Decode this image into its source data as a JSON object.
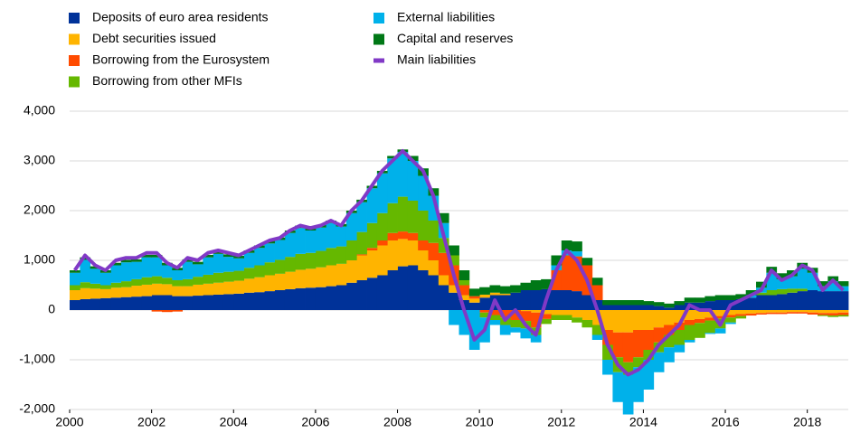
{
  "chart_data": {
    "type": "bar",
    "stacked": true,
    "grid": true,
    "legend": "top-left",
    "xlim": [
      2000,
      2019
    ],
    "xticks": [
      2000,
      2002,
      2004,
      2006,
      2008,
      2010,
      2012,
      2014,
      2016,
      2018
    ],
    "ylim": [
      -2000,
      4000
    ],
    "yticks": [
      {
        "value": -2000,
        "label": "-2,000"
      },
      {
        "value": -1000,
        "label": "-1,000"
      },
      0,
      {
        "value": 1000,
        "label": "1,000"
      },
      {
        "value": 2000,
        "label": "2,000"
      },
      {
        "value": 3000,
        "label": "3,000"
      },
      {
        "value": 4000,
        "label": "4,000"
      }
    ],
    "x": [
      2000,
      2000.25,
      2000.5,
      2000.75,
      2001,
      2001.25,
      2001.5,
      2001.75,
      2002,
      2002.25,
      2002.5,
      2002.75,
      2003,
      2003.25,
      2003.5,
      2003.75,
      2004,
      2004.25,
      2004.5,
      2004.75,
      2005,
      2005.25,
      2005.5,
      2005.75,
      2006,
      2006.25,
      2006.5,
      2006.75,
      2007,
      2007.25,
      2007.5,
      2007.75,
      2008,
      2008.25,
      2008.5,
      2008.75,
      2009,
      2009.25,
      2009.5,
      2009.75,
      2010,
      2010.25,
      2010.5,
      2010.75,
      2011,
      2011.25,
      2011.5,
      2011.75,
      2012,
      2012.25,
      2012.5,
      2012.75,
      2013,
      2013.25,
      2013.5,
      2013.75,
      2014,
      2014.25,
      2014.5,
      2014.75,
      2015,
      2015.25,
      2015.5,
      2015.75,
      2016,
      2016.25,
      2016.5,
      2016.75,
      2017,
      2017.25,
      2017.5,
      2017.75,
      2018,
      2018.25,
      2018.5,
      2018.75
    ],
    "series": [
      {
        "name": "Deposits of euro area residents",
        "color": "#003299",
        "type": "bar",
        "values": [
          200,
          220,
          230,
          240,
          250,
          260,
          270,
          280,
          300,
          300,
          280,
          280,
          290,
          300,
          310,
          320,
          330,
          350,
          360,
          380,
          400,
          420,
          440,
          450,
          460,
          480,
          500,
          550,
          600,
          650,
          700,
          800,
          880,
          900,
          800,
          700,
          500,
          350,
          200,
          150,
          250,
          300,
          300,
          350,
          400,
          400,
          420,
          400,
          400,
          380,
          300,
          200,
          100,
          100,
          100,
          100,
          100,
          80,
          50,
          100,
          150,
          150,
          180,
          200,
          200,
          220,
          250,
          300,
          300,
          320,
          350,
          380,
          400,
          380,
          380,
          380
        ]
      },
      {
        "name": "Debt securities issued",
        "color": "#ffb400",
        "type": "bar",
        "values": [
          200,
          220,
          200,
          180,
          200,
          200,
          220,
          230,
          230,
          220,
          200,
          200,
          220,
          230,
          240,
          250,
          260,
          280,
          300,
          320,
          330,
          350,
          370,
          380,
          400,
          420,
          430,
          450,
          500,
          550,
          600,
          600,
          550,
          500,
          400,
          300,
          200,
          150,
          100,
          80,
          60,
          50,
          30,
          0,
          -20,
          -50,
          -80,
          -100,
          -100,
          -150,
          -200,
          -300,
          -400,
          -450,
          -450,
          -400,
          -400,
          -350,
          -300,
          -250,
          -200,
          -180,
          -150,
          -120,
          -100,
          -80,
          -70,
          -60,
          -50,
          -50,
          -40,
          -40,
          -50,
          -60,
          -60,
          -50
        ]
      },
      {
        "name": "Borrowing from the Eurosystem",
        "color": "#ff4b00",
        "type": "bar",
        "values": [
          0,
          0,
          0,
          0,
          0,
          0,
          0,
          0,
          -30,
          -40,
          -30,
          0,
          0,
          0,
          0,
          0,
          0,
          0,
          0,
          0,
          0,
          0,
          0,
          0,
          0,
          0,
          0,
          0,
          20,
          50,
          100,
          150,
          150,
          150,
          200,
          350,
          450,
          400,
          200,
          50,
          -50,
          -100,
          -150,
          -200,
          -200,
          -300,
          -100,
          400,
          700,
          700,
          600,
          300,
          -300,
          -500,
          -600,
          -550,
          -400,
          -300,
          -200,
          -150,
          -100,
          -80,
          -60,
          -50,
          -50,
          -40,
          -40,
          -30,
          -30,
          -30,
          -30,
          -30,
          -40,
          -40,
          -50,
          -50
        ]
      },
      {
        "name": "Borrowing from other MFIs",
        "color": "#65b800",
        "type": "bar",
        "values": [
          100,
          120,
          100,
          80,
          100,
          120,
          130,
          150,
          150,
          130,
          120,
          140,
          160,
          180,
          200,
          200,
          200,
          220,
          240,
          260,
          280,
          300,
          320,
          320,
          330,
          350,
          350,
          400,
          450,
          500,
          550,
          600,
          700,
          650,
          600,
          450,
          300,
          200,
          100,
          0,
          -100,
          -100,
          -150,
          -150,
          -150,
          -150,
          -100,
          -100,
          -100,
          -100,
          -150,
          -200,
          -300,
          -300,
          -250,
          -200,
          -200,
          -200,
          -250,
          -300,
          -300,
          -300,
          -250,
          -200,
          -100,
          -50,
          0,
          50,
          100,
          100,
          80,
          50,
          0,
          -20,
          -30,
          -30
        ]
      },
      {
        "name": "External liabilities",
        "color": "#00b1ea",
        "type": "bar",
        "values": [
          250,
          450,
          300,
          250,
          350,
          380,
          350,
          400,
          380,
          250,
          200,
          350,
          250,
          350,
          380,
          300,
          250,
          300,
          350,
          380,
          400,
          480,
          520,
          450,
          470,
          500,
          400,
          550,
          600,
          700,
          800,
          900,
          900,
          800,
          700,
          500,
          300,
          -300,
          -500,
          -800,
          -500,
          -100,
          -200,
          -100,
          -200,
          -150,
          0,
          100,
          100,
          100,
          0,
          -100,
          -300,
          -600,
          -800,
          -700,
          -600,
          -400,
          -300,
          -150,
          -50,
          0,
          -20,
          -100,
          -30,
          0,
          50,
          100,
          350,
          200,
          250,
          400,
          350,
          100,
          200,
          100
        ]
      },
      {
        "name": "Capital and reserves",
        "color": "#007816",
        "type": "bar",
        "values": [
          50,
          50,
          50,
          50,
          50,
          50,
          50,
          50,
          50,
          50,
          50,
          50,
          50,
          50,
          50,
          50,
          50,
          50,
          50,
          50,
          50,
          50,
          50,
          50,
          50,
          50,
          50,
          50,
          50,
          50,
          50,
          50,
          50,
          100,
          150,
          150,
          200,
          200,
          200,
          150,
          150,
          150,
          150,
          150,
          150,
          200,
          200,
          200,
          200,
          200,
          150,
          150,
          100,
          100,
          100,
          100,
          80,
          80,
          80,
          80,
          100,
          100,
          100,
          100,
          100,
          100,
          100,
          120,
          120,
          120,
          120,
          120,
          100,
          100,
          100,
          100
        ]
      },
      {
        "name": "Main liabilities",
        "color": "#8139c6",
        "type": "line",
        "values": [
          800,
          1100,
          900,
          800,
          1000,
          1050,
          1050,
          1150,
          1150,
          950,
          850,
          1050,
          1000,
          1150,
          1200,
          1150,
          1100,
          1200,
          1300,
          1400,
          1450,
          1600,
          1700,
          1650,
          1700,
          1800,
          1700,
          2000,
          2200,
          2500,
          2800,
          3000,
          3200,
          3000,
          2800,
          2300,
          1500,
          700,
          0,
          -600,
          -400,
          200,
          -200,
          0,
          -300,
          -500,
          200,
          800,
          1200,
          1000,
          600,
          0,
          -700,
          -1100,
          -1300,
          -1200,
          -1000,
          -700,
          -500,
          -300,
          100,
          0,
          0,
          -300,
          100,
          200,
          300,
          400,
          800,
          600,
          700,
          900,
          800,
          400,
          600,
          400
        ]
      }
    ]
  }
}
